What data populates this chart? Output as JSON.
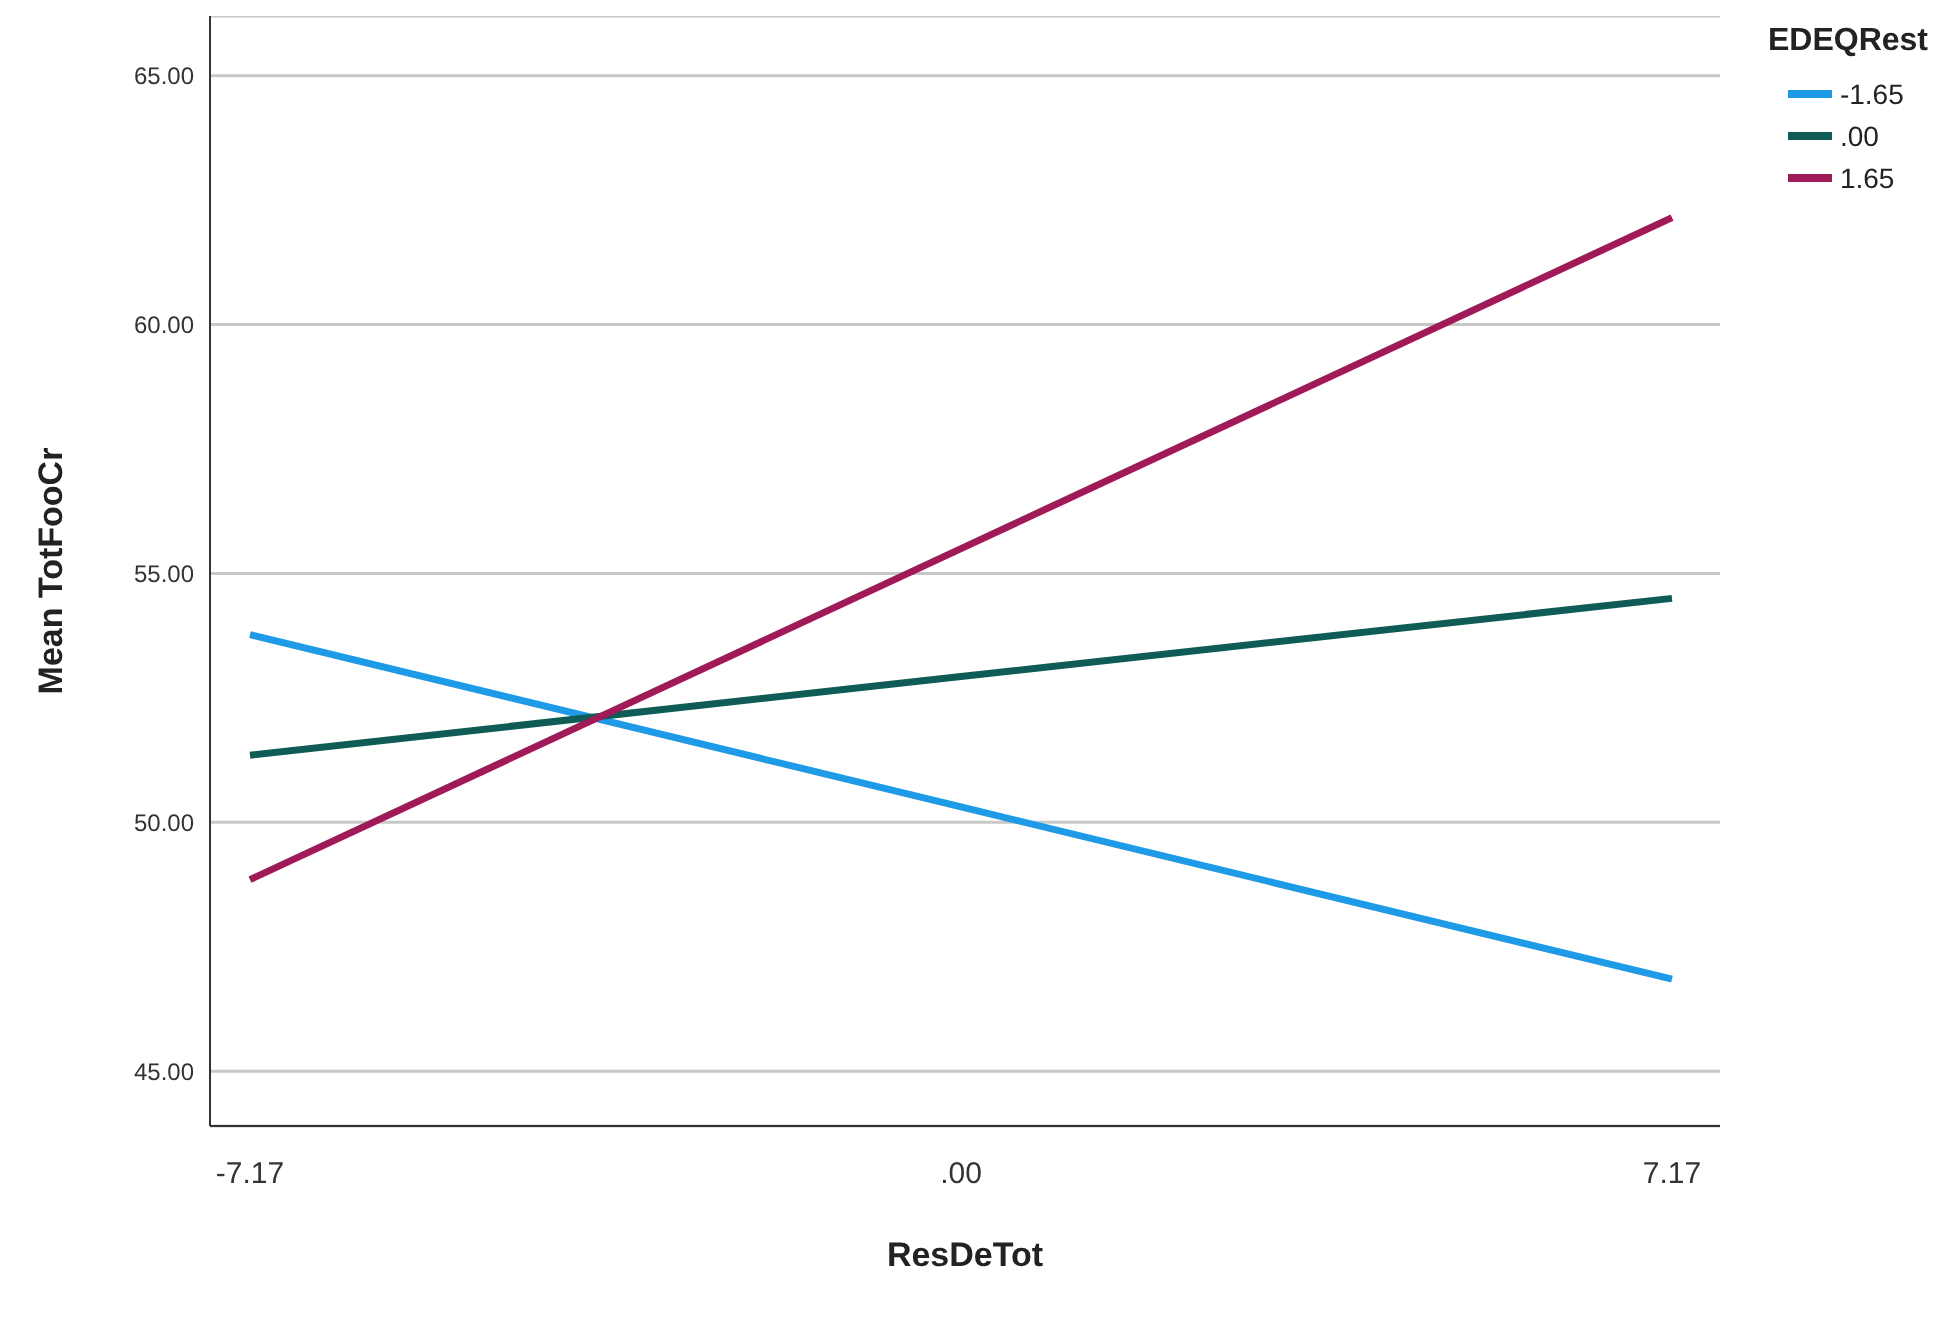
{
  "chart_data": {
    "type": "line",
    "xlabel": "ResDeTot",
    "ylabel": "Mean TotFooCr",
    "legend_title": "EDEQRest",
    "categories": [
      "-7.17",
      ".00",
      "7.17"
    ],
    "series": [
      {
        "name": "-1.65",
        "color": "#1f9ae6",
        "values": [
          53.77,
          50.31,
          46.85
        ]
      },
      {
        "name": ".00",
        "color": "#0f5c56",
        "values": [
          51.35,
          52.93,
          54.5
        ]
      },
      {
        "name": "1.65",
        "color": "#a01a58",
        "values": [
          48.85,
          55.5,
          62.15
        ]
      }
    ],
    "ylim": [
      43.9,
      66.2
    ],
    "yticks": [
      {
        "value": 45,
        "label": "45.00"
      },
      {
        "value": 50,
        "label": "50.00"
      },
      {
        "value": 55,
        "label": "55.00"
      },
      {
        "value": 60,
        "label": "60.00"
      },
      {
        "value": 65,
        "label": "65.00"
      }
    ],
    "grid": "y",
    "legend": "top right",
    "marker": "none",
    "line_style": "solid"
  }
}
